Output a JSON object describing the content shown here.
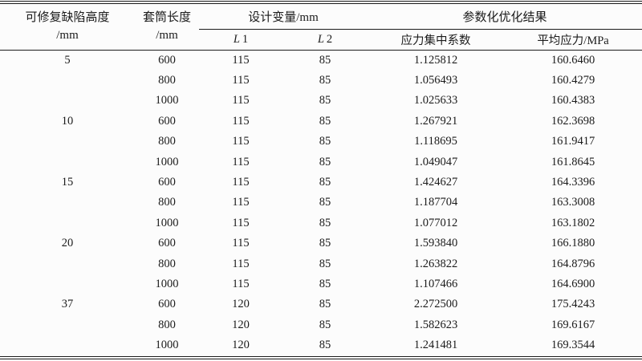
{
  "page": {
    "background": "#fcfcfc",
    "text_color": "#1b1b1b",
    "rule_color": "#1c1c1c"
  },
  "table": {
    "header": {
      "defect_height_line1": "可修复缺陷高度",
      "defect_height_line2": "/mm",
      "sleeve_length_line1": "套筒长度",
      "sleeve_length_line2": "/mm",
      "design_vars_group": "设计变量/mm",
      "results_group": "参数化优化结果",
      "l1_symbol": "L",
      "l1_index": "1",
      "l2_symbol": "L",
      "l2_index": "2",
      "stress_concentration": "应力集中系数",
      "average_stress": "平均应力/MPa"
    },
    "rows": [
      [
        "5",
        "600",
        "115",
        "85",
        "1.125812",
        "160.6460"
      ],
      [
        "",
        "800",
        "115",
        "85",
        "1.056493",
        "160.4279"
      ],
      [
        "",
        "1000",
        "115",
        "85",
        "1.025633",
        "160.4383"
      ],
      [
        "10",
        "600",
        "115",
        "85",
        "1.267921",
        "162.3698"
      ],
      [
        "",
        "800",
        "115",
        "85",
        "1.118695",
        "161.9417"
      ],
      [
        "",
        "1000",
        "115",
        "85",
        "1.049047",
        "161.8645"
      ],
      [
        "15",
        "600",
        "115",
        "85",
        "1.424627",
        "164.3396"
      ],
      [
        "",
        "800",
        "115",
        "85",
        "1.187704",
        "163.3008"
      ],
      [
        "",
        "1000",
        "115",
        "85",
        "1.077012",
        "163.1802"
      ],
      [
        "20",
        "600",
        "115",
        "85",
        "1.593840",
        "166.1880"
      ],
      [
        "",
        "800",
        "115",
        "85",
        "1.263822",
        "164.8796"
      ],
      [
        "",
        "1000",
        "115",
        "85",
        "1.107466",
        "164.6900"
      ],
      [
        "37",
        "600",
        "120",
        "85",
        "2.272500",
        "175.4243"
      ],
      [
        "",
        "800",
        "120",
        "85",
        "1.582623",
        "169.6167"
      ],
      [
        "",
        "1000",
        "120",
        "85",
        "1.241481",
        "169.3544"
      ]
    ]
  }
}
